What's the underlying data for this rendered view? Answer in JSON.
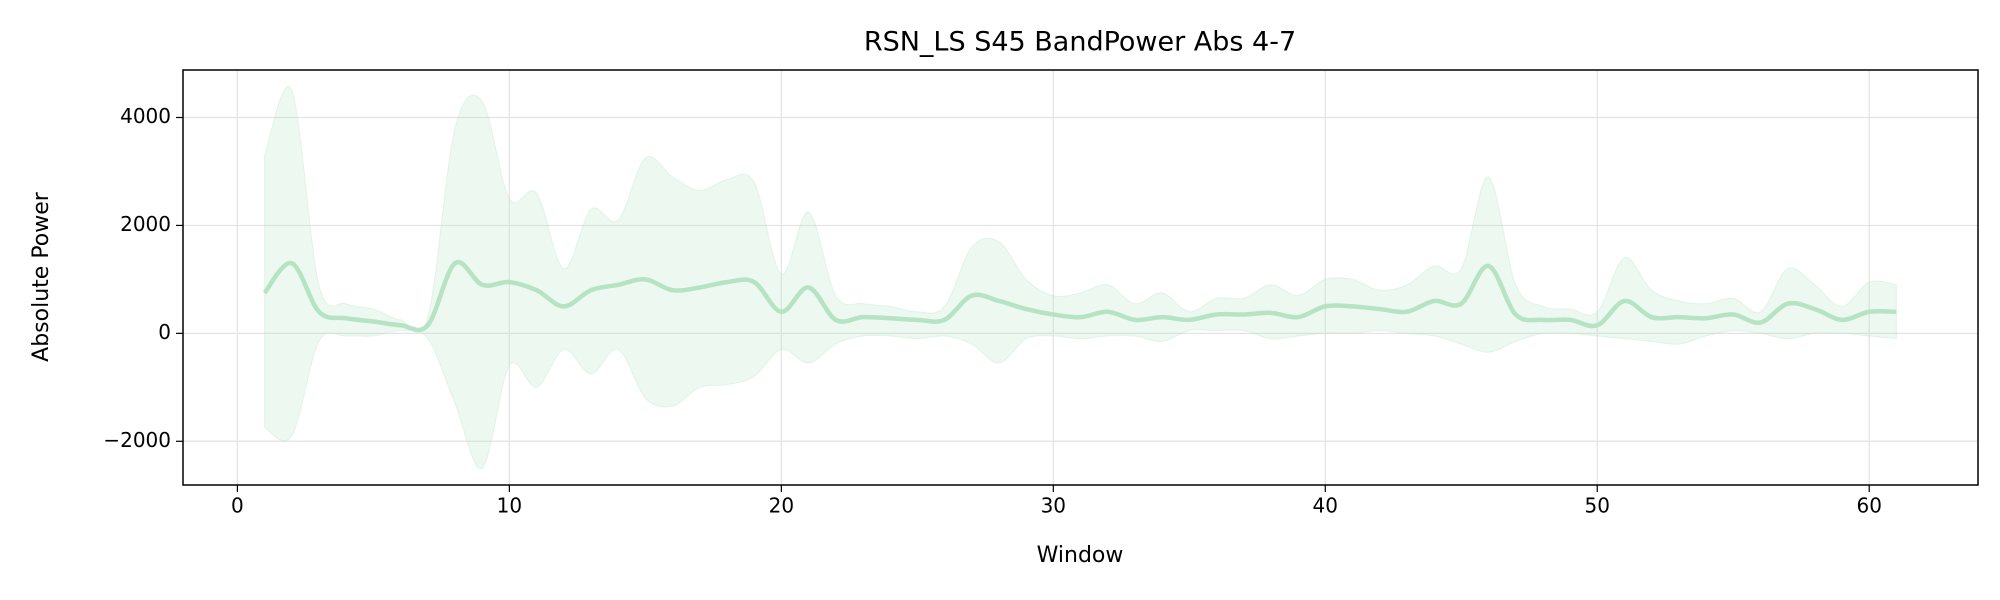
{
  "chart_data": {
    "type": "line",
    "title": "RSN_LS S45 BandPower Abs 4-7",
    "x_label": "Window",
    "y_label": "Absolute Power",
    "color": "#b5e3c3",
    "grid": true,
    "xlim": [
      -2,
      64
    ],
    "ylim": [
      -2810,
      4880
    ],
    "xticks": [
      0,
      10,
      20,
      30,
      40,
      50,
      60
    ],
    "yticks": [
      {
        "value": -2000,
        "label": "−2000"
      },
      0,
      2000,
      4000
    ],
    "x": [
      1,
      2,
      3,
      4,
      5,
      6,
      7,
      8,
      9,
      10,
      11,
      12,
      13,
      14,
      15,
      16,
      17,
      18,
      19,
      20,
      21,
      22,
      23,
      24,
      25,
      26,
      27,
      28,
      29,
      30,
      31,
      32,
      33,
      34,
      35,
      36,
      37,
      38,
      39,
      40,
      41,
      42,
      43,
      44,
      45,
      46,
      47,
      48,
      49,
      50,
      51,
      52,
      53,
      54,
      55,
      56,
      57,
      58,
      59,
      60,
      61
    ],
    "values": [
      750,
      1300,
      400,
      280,
      220,
      150,
      150,
      1300,
      900,
      950,
      800,
      500,
      800,
      900,
      1000,
      800,
      850,
      950,
      950,
      400,
      850,
      250,
      300,
      280,
      250,
      250,
      700,
      600,
      450,
      350,
      300,
      400,
      250,
      300,
      250,
      350,
      350,
      380,
      300,
      500,
      500,
      450,
      400,
      600,
      550,
      1250,
      350,
      250,
      250,
      150,
      600,
      300,
      300,
      280,
      350,
      200,
      550,
      450,
      250,
      400,
      400
    ],
    "upper": [
      3300,
      4500,
      900,
      550,
      450,
      250,
      300,
      3800,
      4300,
      2500,
      2600,
      1200,
      2300,
      2100,
      3250,
      2900,
      2650,
      2850,
      2800,
      1100,
      2250,
      700,
      550,
      500,
      400,
      500,
      1600,
      1700,
      1000,
      700,
      750,
      900,
      550,
      750,
      400,
      650,
      650,
      900,
      700,
      1000,
      1000,
      800,
      900,
      1250,
      1200,
      2900,
      900,
      500,
      450,
      400,
      1400,
      800,
      600,
      550,
      650,
      400,
      1200,
      900,
      500,
      950,
      900
    ],
    "lower": [
      -1750,
      -1900,
      -150,
      -50,
      -50,
      50,
      -100,
      -1300,
      -2500,
      -600,
      -1000,
      -300,
      -750,
      -300,
      -1200,
      -1350,
      -1000,
      -950,
      -800,
      -300,
      -550,
      -200,
      -50,
      -50,
      -100,
      -50,
      -200,
      -550,
      -100,
      -50,
      -100,
      -50,
      -50,
      -150,
      50,
      50,
      50,
      -100,
      -50,
      0,
      0,
      50,
      0,
      -50,
      -200,
      -350,
      -150,
      0,
      0,
      -50,
      -100,
      -150,
      -200,
      -50,
      50,
      0,
      -100,
      0,
      0,
      -50,
      -100
    ]
  }
}
